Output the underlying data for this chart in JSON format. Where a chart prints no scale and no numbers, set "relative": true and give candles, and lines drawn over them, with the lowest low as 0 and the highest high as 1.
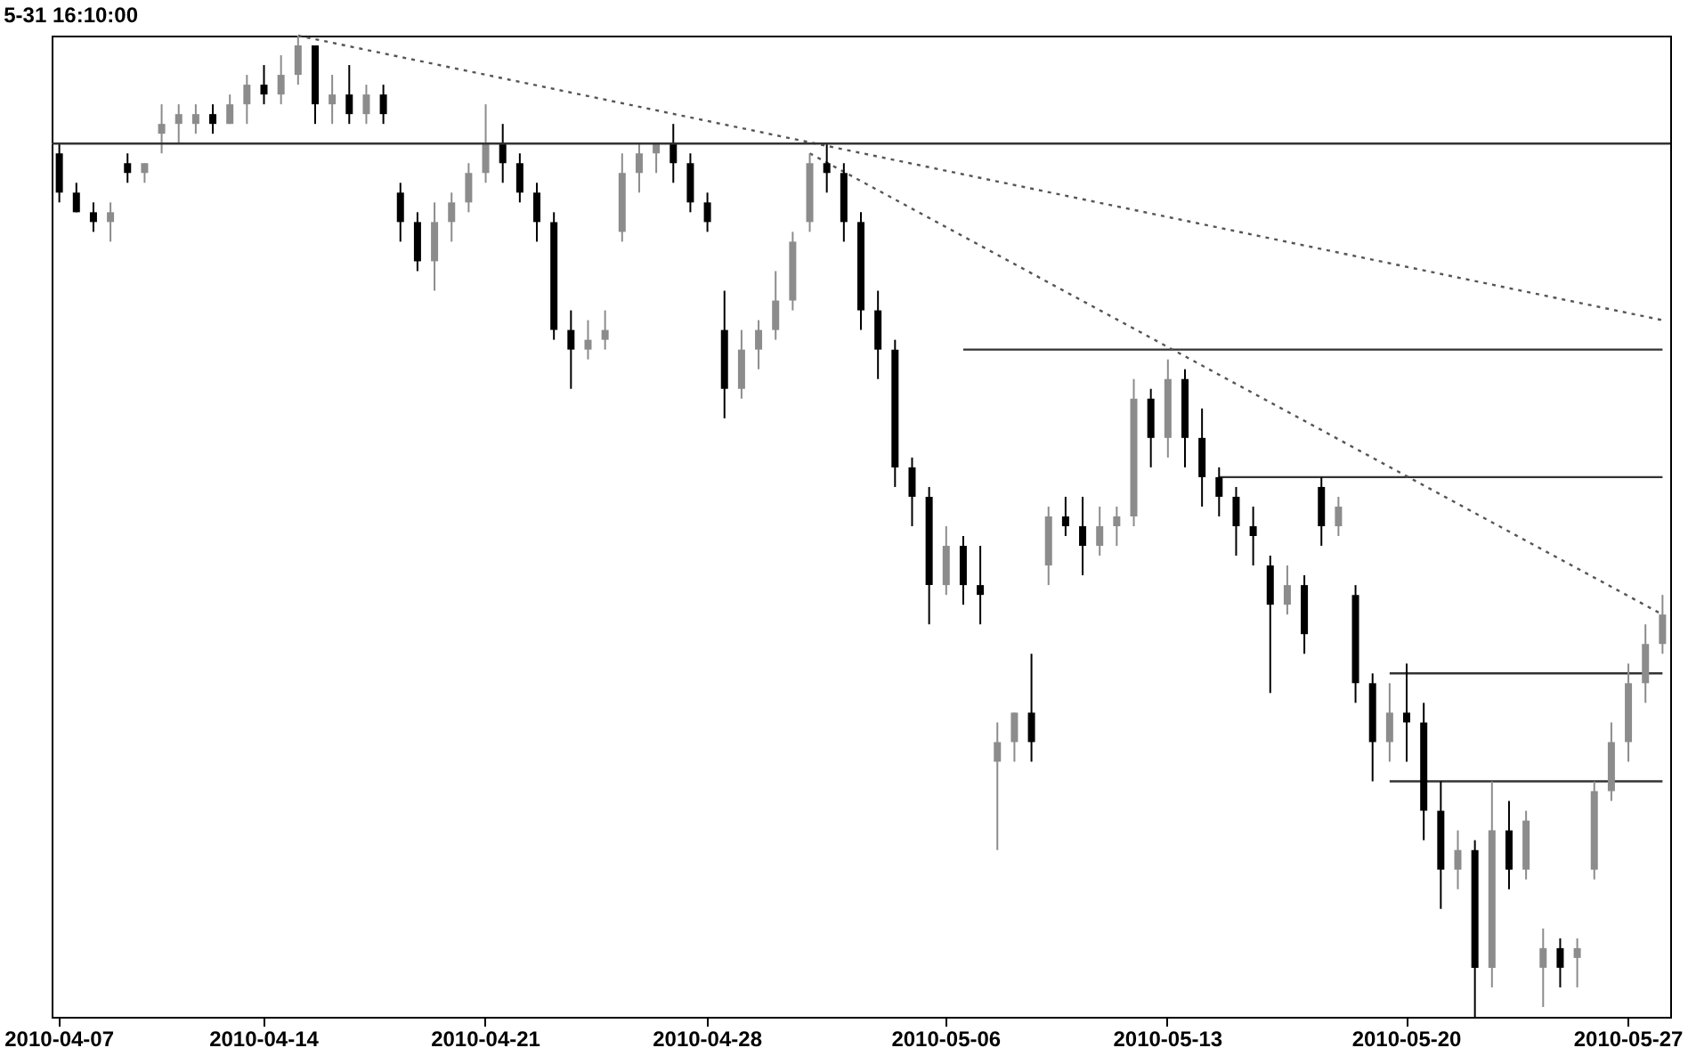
{
  "chart_data": {
    "type": "candlestick",
    "title": "5-31 16:10:00",
    "relative": true,
    "categories": [
      "2010-04-07",
      null,
      null,
      null,
      null,
      null,
      null,
      null,
      null,
      null,
      null,
      null,
      "2010-04-14",
      null,
      null,
      null,
      null,
      null,
      null,
      null,
      null,
      null,
      null,
      null,
      null,
      "2010-04-21",
      null,
      null,
      null,
      null,
      null,
      null,
      null,
      null,
      null,
      null,
      null,
      null,
      "2010-04-28",
      null,
      null,
      null,
      null,
      null,
      null,
      null,
      null,
      null,
      null,
      null,
      null,
      null,
      "2010-05-06",
      null,
      null,
      null,
      null,
      null,
      null,
      null,
      null,
      null,
      null,
      null,
      null,
      "2010-05-13",
      null,
      null,
      null,
      null,
      null,
      null,
      null,
      null,
      null,
      null,
      null,
      null,
      null,
      "2010-05-20",
      null,
      null,
      null,
      null,
      null,
      null,
      null,
      null,
      null,
      null,
      null,
      null,
      "2010-05-27",
      null,
      null
    ],
    "ohlc": [
      [
        0.88,
        0.89,
        0.83,
        0.84
      ],
      [
        0.84,
        0.85,
        0.82,
        0.82
      ],
      [
        0.82,
        0.83,
        0.8,
        0.81
      ],
      [
        0.81,
        0.83,
        0.79,
        0.82
      ],
      [
        0.87,
        0.88,
        0.85,
        0.86
      ],
      [
        0.86,
        0.87,
        0.85,
        0.87
      ],
      [
        0.9,
        0.93,
        0.88,
        0.91
      ],
      [
        0.91,
        0.93,
        0.89,
        0.92
      ],
      [
        0.91,
        0.93,
        0.9,
        0.92
      ],
      [
        0.92,
        0.93,
        0.9,
        0.91
      ],
      [
        0.91,
        0.94,
        0.91,
        0.93
      ],
      [
        0.93,
        0.96,
        0.91,
        0.95
      ],
      [
        0.95,
        0.97,
        0.93,
        0.94
      ],
      [
        0.94,
        0.98,
        0.93,
        0.96
      ],
      [
        0.96,
        1.0,
        0.95,
        0.99
      ],
      [
        0.99,
        0.99,
        0.91,
        0.93
      ],
      [
        0.93,
        0.96,
        0.91,
        0.94
      ],
      [
        0.94,
        0.97,
        0.91,
        0.92
      ],
      [
        0.92,
        0.95,
        0.91,
        0.94
      ],
      [
        0.94,
        0.95,
        0.91,
        0.92
      ],
      [
        0.84,
        0.85,
        0.79,
        0.81
      ],
      [
        0.81,
        0.82,
        0.76,
        0.77
      ],
      [
        0.77,
        0.83,
        0.74,
        0.81
      ],
      [
        0.81,
        0.84,
        0.79,
        0.83
      ],
      [
        0.83,
        0.87,
        0.82,
        0.86
      ],
      [
        0.86,
        0.93,
        0.85,
        0.89
      ],
      [
        0.89,
        0.91,
        0.85,
        0.87
      ],
      [
        0.87,
        0.88,
        0.83,
        0.84
      ],
      [
        0.84,
        0.85,
        0.79,
        0.81
      ],
      [
        0.81,
        0.82,
        0.69,
        0.7
      ],
      [
        0.7,
        0.72,
        0.64,
        0.68
      ],
      [
        0.68,
        0.71,
        0.67,
        0.69
      ],
      [
        0.69,
        0.72,
        0.68,
        0.7
      ],
      [
        0.8,
        0.88,
        0.79,
        0.86
      ],
      [
        0.86,
        0.89,
        0.84,
        0.88
      ],
      [
        0.88,
        0.89,
        0.86,
        0.89
      ],
      [
        0.89,
        0.91,
        0.85,
        0.87
      ],
      [
        0.87,
        0.88,
        0.82,
        0.83
      ],
      [
        0.83,
        0.84,
        0.8,
        0.81
      ],
      [
        0.7,
        0.74,
        0.61,
        0.64
      ],
      [
        0.64,
        0.7,
        0.63,
        0.68
      ],
      [
        0.68,
        0.71,
        0.66,
        0.7
      ],
      [
        0.7,
        0.76,
        0.69,
        0.73
      ],
      [
        0.73,
        0.8,
        0.72,
        0.79
      ],
      [
        0.81,
        0.88,
        0.8,
        0.87
      ],
      [
        0.87,
        0.89,
        0.84,
        0.86
      ],
      [
        0.86,
        0.87,
        0.79,
        0.81
      ],
      [
        0.81,
        0.82,
        0.7,
        0.72
      ],
      [
        0.72,
        0.74,
        0.65,
        0.68
      ],
      [
        0.68,
        0.69,
        0.54,
        0.56
      ],
      [
        0.56,
        0.57,
        0.5,
        0.53
      ],
      [
        0.53,
        0.54,
        0.4,
        0.44
      ],
      [
        0.44,
        0.5,
        0.43,
        0.48
      ],
      [
        0.48,
        0.49,
        0.42,
        0.44
      ],
      [
        0.44,
        0.48,
        0.4,
        0.43
      ],
      [
        0.26,
        0.3,
        0.17,
        0.28
      ],
      [
        0.28,
        0.31,
        0.26,
        0.31
      ],
      [
        0.31,
        0.37,
        0.26,
        0.28
      ],
      [
        0.46,
        0.52,
        0.44,
        0.51
      ],
      [
        0.51,
        0.53,
        0.49,
        0.5
      ],
      [
        0.5,
        0.53,
        0.45,
        0.48
      ],
      [
        0.48,
        0.52,
        0.47,
        0.5
      ],
      [
        0.5,
        0.52,
        0.48,
        0.51
      ],
      [
        0.51,
        0.65,
        0.5,
        0.63
      ],
      [
        0.63,
        0.64,
        0.56,
        0.59
      ],
      [
        0.59,
        0.67,
        0.57,
        0.65
      ],
      [
        0.65,
        0.66,
        0.56,
        0.59
      ],
      [
        0.59,
        0.62,
        0.52,
        0.55
      ],
      [
        0.55,
        0.56,
        0.51,
        0.53
      ],
      [
        0.53,
        0.54,
        0.47,
        0.5
      ],
      [
        0.5,
        0.52,
        0.46,
        0.49
      ],
      [
        0.46,
        0.47,
        0.33,
        0.42
      ],
      [
        0.42,
        0.46,
        0.41,
        0.44
      ],
      [
        0.44,
        0.45,
        0.37,
        0.39
      ],
      [
        0.54,
        0.55,
        0.48,
        0.5
      ],
      [
        0.5,
        0.53,
        0.49,
        0.52
      ],
      [
        0.43,
        0.44,
        0.32,
        0.34
      ],
      [
        0.34,
        0.35,
        0.24,
        0.28
      ],
      [
        0.28,
        0.34,
        0.26,
        0.31
      ],
      [
        0.31,
        0.36,
        0.26,
        0.3
      ],
      [
        0.3,
        0.32,
        0.18,
        0.21
      ],
      [
        0.21,
        0.24,
        0.11,
        0.15
      ],
      [
        0.15,
        0.19,
        0.13,
        0.17
      ],
      [
        0.17,
        0.18,
        0.0,
        0.05
      ],
      [
        0.05,
        0.24,
        0.03,
        0.19
      ],
      [
        0.19,
        0.22,
        0.13,
        0.15
      ],
      [
        0.15,
        0.21,
        0.14,
        0.2
      ],
      [
        0.05,
        0.09,
        0.01,
        0.07
      ],
      [
        0.07,
        0.08,
        0.03,
        0.05
      ],
      [
        0.06,
        0.08,
        0.03,
        0.07
      ],
      [
        0.15,
        0.24,
        0.14,
        0.23
      ],
      [
        0.23,
        0.3,
        0.22,
        0.28
      ],
      [
        0.28,
        0.36,
        0.26,
        0.34
      ],
      [
        0.34,
        0.4,
        0.32,
        0.38
      ],
      [
        0.38,
        0.43,
        0.37,
        0.41
      ]
    ],
    "series": [
      {
        "type": "line",
        "color": "#333333",
        "line_style": "solid",
        "values": [
          null,
          null,
          null,
          null,
          null,
          null,
          null,
          null,
          null,
          null,
          null,
          null,
          null,
          null,
          null,
          null,
          null,
          null,
          null,
          null,
          null,
          null,
          null,
          null,
          null,
          null,
          null,
          null,
          null,
          null,
          null,
          null,
          null,
          null,
          null,
          null,
          null,
          null,
          null,
          null,
          null,
          null,
          null,
          null,
          null,
          null,
          null,
          null,
          null,
          null,
          null,
          null,
          null,
          0.68,
          0.68,
          0.68,
          0.68,
          0.68,
          0.68,
          0.68,
          0.68,
          0.68,
          0.68,
          0.68,
          0.68,
          0.68,
          0.68,
          0.68,
          0.68,
          0.68,
          0.68,
          0.68,
          0.68,
          0.68,
          0.68,
          0.68,
          0.68,
          0.68,
          0.68,
          0.68,
          0.68,
          0.68,
          0.68,
          0.68,
          0.68,
          0.68,
          0.68,
          0.68,
          0.68,
          0.68,
          0.68,
          0.68,
          0.68,
          0.68,
          0.68
        ]
      },
      {
        "type": "line",
        "color": "#333333",
        "line_style": "solid",
        "values": [
          null,
          null,
          null,
          null,
          null,
          null,
          null,
          null,
          null,
          null,
          null,
          null,
          null,
          null,
          null,
          null,
          null,
          null,
          null,
          null,
          null,
          null,
          null,
          null,
          null,
          null,
          null,
          null,
          null,
          null,
          null,
          null,
          null,
          null,
          null,
          null,
          null,
          null,
          null,
          null,
          null,
          null,
          null,
          null,
          null,
          null,
          null,
          null,
          null,
          null,
          null,
          null,
          null,
          null,
          null,
          null,
          null,
          null,
          null,
          null,
          null,
          null,
          null,
          null,
          null,
          null,
          null,
          null,
          0.55,
          0.55,
          0.55,
          0.55,
          0.55,
          0.55,
          0.55,
          0.55,
          0.55,
          0.55,
          0.55,
          0.55,
          0.55,
          0.55,
          0.55,
          0.55,
          0.55,
          0.55,
          0.55,
          0.55,
          0.55,
          0.55,
          0.55,
          0.55,
          0.55,
          0.55,
          0.55
        ]
      },
      {
        "type": "line",
        "color": "#333333",
        "line_style": "solid",
        "values": [
          null,
          null,
          null,
          null,
          null,
          null,
          null,
          null,
          null,
          null,
          null,
          null,
          null,
          null,
          null,
          null,
          null,
          null,
          null,
          null,
          null,
          null,
          null,
          null,
          null,
          null,
          null,
          null,
          null,
          null,
          null,
          null,
          null,
          null,
          null,
          null,
          null,
          null,
          null,
          null,
          null,
          null,
          null,
          null,
          null,
          null,
          null,
          null,
          null,
          null,
          null,
          null,
          null,
          null,
          null,
          null,
          null,
          null,
          null,
          null,
          null,
          null,
          null,
          null,
          null,
          null,
          null,
          null,
          null,
          null,
          null,
          null,
          null,
          null,
          null,
          null,
          null,
          null,
          0.35,
          0.35,
          0.35,
          0.35,
          0.35,
          0.35,
          0.35,
          0.35,
          0.35,
          0.35,
          0.35,
          0.35,
          0.35,
          0.35,
          0.35,
          0.35,
          0.35
        ]
      },
      {
        "type": "line",
        "color": "#333333",
        "line_style": "solid",
        "values": [
          null,
          null,
          null,
          null,
          null,
          null,
          null,
          null,
          null,
          null,
          null,
          null,
          null,
          null,
          null,
          null,
          null,
          null,
          null,
          null,
          null,
          null,
          null,
          null,
          null,
          null,
          null,
          null,
          null,
          null,
          null,
          null,
          null,
          null,
          null,
          null,
          null,
          null,
          null,
          null,
          null,
          null,
          null,
          null,
          null,
          null,
          null,
          null,
          null,
          null,
          null,
          null,
          null,
          null,
          null,
          null,
          null,
          null,
          null,
          null,
          null,
          null,
          null,
          null,
          null,
          null,
          null,
          null,
          null,
          null,
          null,
          null,
          null,
          null,
          null,
          null,
          null,
          null,
          0.24,
          0.24,
          0.24,
          0.24,
          0.24,
          0.24,
          0.24,
          0.24,
          0.24,
          0.24,
          0.24,
          0.24,
          0.24,
          0.24,
          0.24,
          0.24,
          0.24
        ]
      },
      {
        "type": "line",
        "color": "#555555",
        "line_style": "dotted",
        "values": [
          null,
          null,
          null,
          null,
          null,
          null,
          null,
          null,
          null,
          null,
          null,
          null,
          null,
          null,
          1.0,
          null,
          null,
          null,
          null,
          null,
          null,
          null,
          null,
          null,
          null,
          null,
          null,
          null,
          null,
          null,
          null,
          null,
          null,
          null,
          null,
          null,
          null,
          null,
          null,
          null,
          null,
          null,
          null,
          null,
          null,
          null,
          null,
          null,
          null,
          null,
          null,
          null,
          null,
          null,
          null,
          null,
          null,
          null,
          null,
          null,
          null,
          null,
          null,
          null,
          null,
          null,
          null,
          null,
          null,
          null,
          null,
          null,
          null,
          null,
          null,
          null,
          null,
          null,
          null,
          null,
          null,
          null,
          null,
          null,
          null,
          null,
          null,
          null,
          null,
          null,
          null,
          null,
          null,
          null,
          0.71
        ]
      },
      {
        "type": "line",
        "color": "#555555",
        "line_style": "dotted",
        "values": [
          null,
          null,
          null,
          null,
          null,
          null,
          null,
          null,
          null,
          null,
          null,
          null,
          null,
          null,
          null,
          null,
          null,
          null,
          null,
          null,
          null,
          null,
          null,
          null,
          null,
          null,
          null,
          null,
          null,
          null,
          null,
          null,
          null,
          null,
          null,
          null,
          null,
          null,
          null,
          null,
          null,
          null,
          null,
          null,
          0.88,
          null,
          null,
          null,
          null,
          null,
          null,
          null,
          null,
          null,
          null,
          null,
          null,
          null,
          null,
          null,
          null,
          null,
          null,
          null,
          null,
          null,
          null,
          null,
          null,
          null,
          null,
          null,
          null,
          null,
          null,
          null,
          null,
          null,
          null,
          null,
          null,
          null,
          null,
          null,
          null,
          null,
          null,
          null,
          null,
          null,
          null,
          null,
          null,
          null,
          0.41
        ]
      }
    ],
    "ref_lines": [
      {
        "axis": "y",
        "value": 0.89,
        "color": "#333333",
        "line_style": "solid"
      }
    ]
  }
}
